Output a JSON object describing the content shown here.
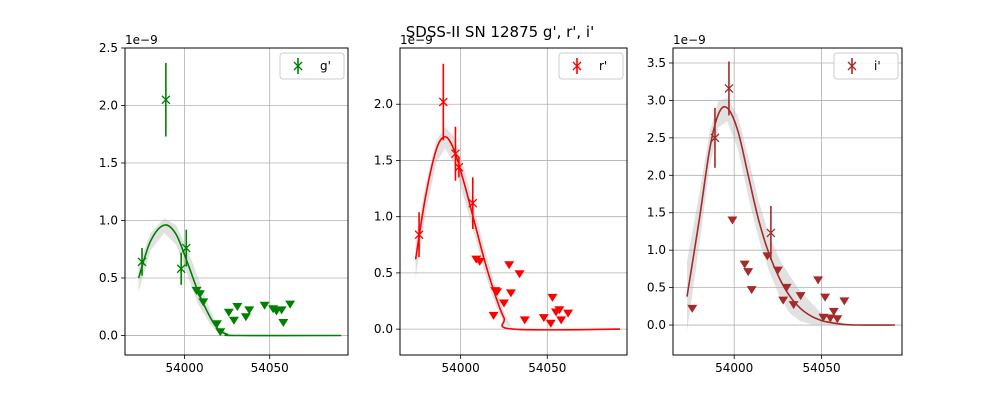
{
  "figure": {
    "title": "SDSS-II SN 12875  g', r', i'"
  },
  "chart_data": [
    {
      "type": "scatter",
      "title": "",
      "xlabel": "",
      "ylabel": "",
      "offset_label": "1e−9",
      "xlim": [
        53965,
        54096
      ],
      "ylim": [
        -0.17,
        2.5
      ],
      "xticks": [
        "54000",
        "54050"
      ],
      "xtick_values": [
        54000,
        54050
      ],
      "yticks": [
        "0.0",
        "0.5",
        "1.0",
        "1.5",
        "2.0",
        "2.5"
      ],
      "ytick_values": [
        0.0,
        0.5,
        1.0,
        1.5,
        2.0,
        2.5
      ],
      "grid": true,
      "legend": {
        "label": "g'",
        "placement": "upper right"
      },
      "color": "#008000",
      "series": [
        {
          "name": "g'",
          "kind": "detections",
          "points": [
            {
              "x": 53975,
              "y": 0.64,
              "err": 0.12
            },
            {
              "x": 53989,
              "y": 2.05,
              "err": 0.32
            },
            {
              "x": 53998,
              "y": 0.58,
              "err": 0.14
            },
            {
              "x": 54001,
              "y": 0.76,
              "err": 0.16
            }
          ]
        },
        {
          "kind": "upper_limits",
          "points": [
            {
              "x": 54007,
              "y": 0.39
            },
            {
              "x": 54009,
              "y": 0.36
            },
            {
              "x": 54011,
              "y": 0.29
            },
            {
              "x": 54019,
              "y": 0.1
            },
            {
              "x": 54021,
              "y": 0.03
            },
            {
              "x": 54026,
              "y": 0.2
            },
            {
              "x": 54029,
              "y": 0.13
            },
            {
              "x": 54031,
              "y": 0.25
            },
            {
              "x": 54036,
              "y": 0.16
            },
            {
              "x": 54038,
              "y": 0.22
            },
            {
              "x": 54047,
              "y": 0.26
            },
            {
              "x": 54052,
              "y": 0.23
            },
            {
              "x": 54054,
              "y": 0.21
            },
            {
              "x": 54057,
              "y": 0.22
            },
            {
              "x": 54058,
              "y": 0.11
            },
            {
              "x": 54062,
              "y": 0.27
            }
          ]
        },
        {
          "kind": "model_fit",
          "points": [
            {
              "x": 53973,
              "y": 0.5
            },
            {
              "x": 53980,
              "y": 0.82
            },
            {
              "x": 53988,
              "y": 0.96
            },
            {
              "x": 53995,
              "y": 0.88
            },
            {
              "x": 54002,
              "y": 0.62
            },
            {
              "x": 54008,
              "y": 0.38
            },
            {
              "x": 54015,
              "y": 0.16
            },
            {
              "x": 54020,
              "y": 0.05
            },
            {
              "x": 54025,
              "y": 0.01
            },
            {
              "x": 54030,
              "y": 0.0
            },
            {
              "x": 54092,
              "y": 0.0
            }
          ],
          "band_upper": [
            0.61,
            0.89,
            1.02,
            0.96,
            0.74,
            0.5,
            0.22,
            0.07,
            0.02,
            0.0,
            0.0
          ],
          "band_lower": [
            0.38,
            0.74,
            0.89,
            0.79,
            0.51,
            0.27,
            0.1,
            0.02,
            0.0,
            0.0,
            0.0
          ]
        }
      ]
    },
    {
      "type": "scatter",
      "title": "",
      "xlabel": "",
      "ylabel": "",
      "offset_label": "1e−9",
      "xlim": [
        53965,
        54096
      ],
      "ylim": [
        -0.23,
        2.5
      ],
      "xticks": [
        "54000",
        "54050"
      ],
      "xtick_values": [
        54000,
        54050
      ],
      "yticks": [
        "0.0",
        "0.5",
        "1.0",
        "1.5",
        "2.0"
      ],
      "ytick_values": [
        0.0,
        0.5,
        1.0,
        1.5,
        2.0
      ],
      "grid": true,
      "legend": {
        "label": "r'",
        "placement": "upper right"
      },
      "color": "#ff0000",
      "series": [
        {
          "name": "r'",
          "kind": "detections",
          "points": [
            {
              "x": 53976,
              "y": 0.84,
              "err": 0.2
            },
            {
              "x": 53990,
              "y": 2.02,
              "err": 0.34
            },
            {
              "x": 53997,
              "y": 1.56,
              "err": 0.24
            },
            {
              "x": 53999,
              "y": 1.44,
              "err": 0.09
            },
            {
              "x": 54007,
              "y": 1.12,
              "err": 0.23
            }
          ]
        },
        {
          "kind": "upper_limits",
          "points": [
            {
              "x": 54009,
              "y": 0.62
            },
            {
              "x": 54011,
              "y": 0.6
            },
            {
              "x": 54019,
              "y": 0.12
            },
            {
              "x": 54020,
              "y": 0.34
            },
            {
              "x": 54021,
              "y": 0.33
            },
            {
              "x": 54025,
              "y": 0.23
            },
            {
              "x": 54028,
              "y": 0.57
            },
            {
              "x": 54029,
              "y": 0.32
            },
            {
              "x": 54034,
              "y": 0.49
            },
            {
              "x": 54037,
              "y": 0.08
            },
            {
              "x": 54048,
              "y": 0.1
            },
            {
              "x": 54052,
              "y": 0.05
            },
            {
              "x": 54053,
              "y": 0.28
            },
            {
              "x": 54055,
              "y": 0.15
            },
            {
              "x": 54057,
              "y": 0.17
            },
            {
              "x": 54058,
              "y": 0.08
            },
            {
              "x": 54062,
              "y": 0.14
            }
          ]
        },
        {
          "kind": "model_fit",
          "points": [
            {
              "x": 53974,
              "y": 0.62
            },
            {
              "x": 53980,
              "y": 1.2
            },
            {
              "x": 53986,
              "y": 1.6
            },
            {
              "x": 53991,
              "y": 1.71
            },
            {
              "x": 53996,
              "y": 1.6
            },
            {
              "x": 54002,
              "y": 1.3
            },
            {
              "x": 54008,
              "y": 0.95
            },
            {
              "x": 54014,
              "y": 0.6
            },
            {
              "x": 54020,
              "y": 0.3
            },
            {
              "x": 54025,
              "y": 0.1
            },
            {
              "x": 54030,
              "y": 0.0
            },
            {
              "x": 54092,
              "y": 0.0
            }
          ],
          "band_upper": [
            0.78,
            1.3,
            1.68,
            1.8,
            1.71,
            1.43,
            1.06,
            0.7,
            0.38,
            0.15,
            0.0,
            0.0
          ],
          "band_lower": [
            0.45,
            1.05,
            1.48,
            1.61,
            1.48,
            1.16,
            0.84,
            0.5,
            0.22,
            0.05,
            0.0,
            0.0
          ]
        }
      ]
    },
    {
      "type": "scatter",
      "title": "",
      "xlabel": "",
      "ylabel": "",
      "offset_label": "1e−9",
      "xlim": [
        53965,
        54096
      ],
      "ylim": [
        -0.4,
        3.7
      ],
      "xticks": [
        "54000",
        "54050"
      ],
      "xtick_values": [
        54000,
        54050
      ],
      "yticks": [
        "0.0",
        "0.5",
        "1.0",
        "1.5",
        "2.0",
        "2.5",
        "3.0",
        "3.5"
      ],
      "ytick_values": [
        0.0,
        0.5,
        1.0,
        1.5,
        2.0,
        2.5,
        3.0,
        3.5
      ],
      "grid": true,
      "legend": {
        "label": "i'",
        "placement": "upper right"
      },
      "color": "#a52a2a",
      "series": [
        {
          "name": "i'",
          "kind": "detections",
          "points": [
            {
              "x": 53989,
              "y": 2.5,
              "err": 0.4
            },
            {
              "x": 53997,
              "y": 3.16,
              "err": 0.36
            },
            {
              "x": 54021,
              "y": 1.23,
              "err": 0.36
            }
          ]
        },
        {
          "kind": "upper_limits",
          "points": [
            {
              "x": 53976,
              "y": 0.22
            },
            {
              "x": 53999,
              "y": 1.4
            },
            {
              "x": 54006,
              "y": 0.81
            },
            {
              "x": 54008,
              "y": 0.71
            },
            {
              "x": 54010,
              "y": 0.47
            },
            {
              "x": 54019,
              "y": 0.92
            },
            {
              "x": 54025,
              "y": 0.73
            },
            {
              "x": 54028,
              "y": 0.33
            },
            {
              "x": 54030,
              "y": 0.5
            },
            {
              "x": 54034,
              "y": 0.27
            },
            {
              "x": 54038,
              "y": 0.39
            },
            {
              "x": 54048,
              "y": 0.6
            },
            {
              "x": 54051,
              "y": 0.1
            },
            {
              "x": 54052,
              "y": 0.37
            },
            {
              "x": 54055,
              "y": 0.09
            },
            {
              "x": 54057,
              "y": 0.18
            },
            {
              "x": 54059,
              "y": 0.08
            },
            {
              "x": 54063,
              "y": 0.32
            }
          ]
        },
        {
          "kind": "model_fit",
          "points": [
            {
              "x": 53973,
              "y": 0.38
            },
            {
              "x": 53980,
              "y": 1.4
            },
            {
              "x": 53986,
              "y": 2.35
            },
            {
              "x": 53991,
              "y": 2.82
            },
            {
              "x": 53996,
              "y": 2.9
            },
            {
              "x": 54002,
              "y": 2.6
            },
            {
              "x": 54008,
              "y": 2.0
            },
            {
              "x": 54014,
              "y": 1.4
            },
            {
              "x": 54020,
              "y": 0.95
            },
            {
              "x": 54026,
              "y": 0.62
            },
            {
              "x": 54032,
              "y": 0.38
            },
            {
              "x": 54038,
              "y": 0.22
            },
            {
              "x": 54044,
              "y": 0.12
            },
            {
              "x": 54050,
              "y": 0.06
            },
            {
              "x": 54056,
              "y": 0.03
            },
            {
              "x": 54062,
              "y": 0.01
            },
            {
              "x": 54070,
              "y": 0.0
            },
            {
              "x": 54092,
              "y": 0.0
            }
          ],
          "band_upper": [
            0.85,
            1.75,
            2.58,
            3.0,
            3.03,
            2.8,
            2.25,
            1.65,
            1.2,
            0.88,
            0.65,
            0.45,
            0.3,
            0.16,
            0.07,
            0.03,
            0.0,
            0.0
          ],
          "band_lower": [
            -0.08,
            1.05,
            2.12,
            2.64,
            2.72,
            2.36,
            1.72,
            1.15,
            0.72,
            0.38,
            0.15,
            0.05,
            0.01,
            0.0,
            0.0,
            0.0,
            0.0,
            0.0
          ]
        }
      ]
    }
  ]
}
